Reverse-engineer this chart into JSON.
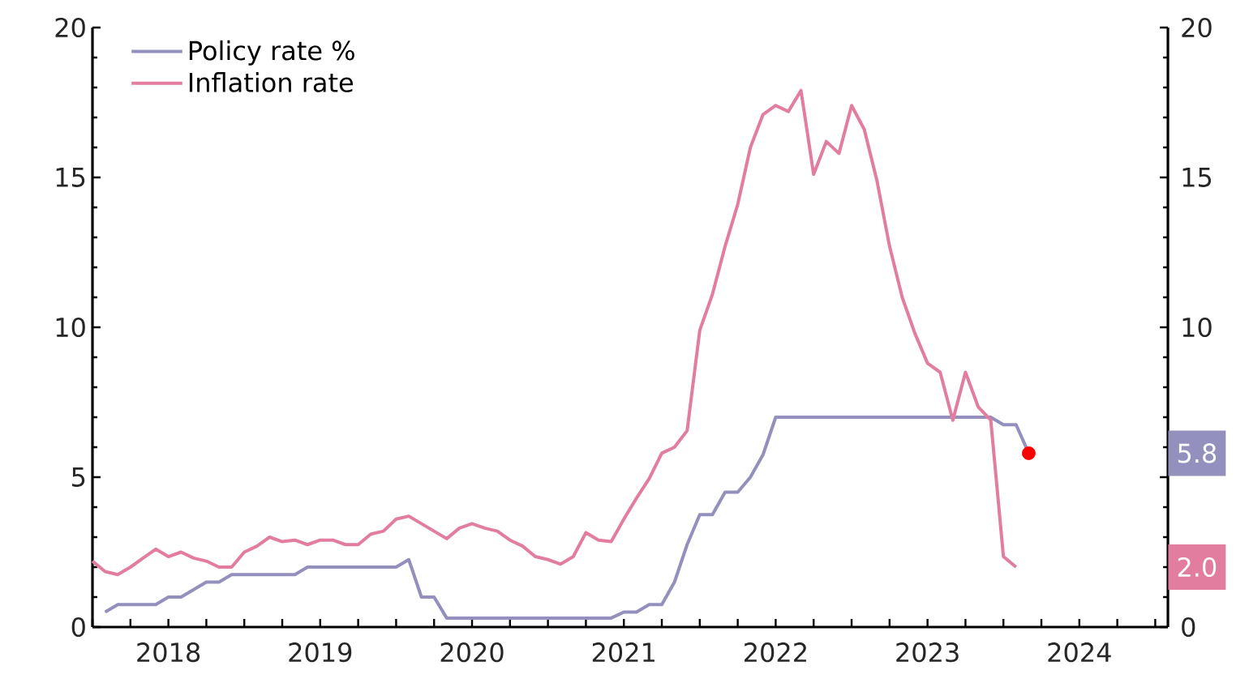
{
  "chart_data": {
    "type": "line",
    "x": [
      "2018-01",
      "2018-02",
      "2018-03",
      "2018-04",
      "2018-05",
      "2018-06",
      "2018-07",
      "2018-08",
      "2018-09",
      "2018-10",
      "2018-11",
      "2018-12",
      "2019-01",
      "2019-02",
      "2019-03",
      "2019-04",
      "2019-05",
      "2019-06",
      "2019-07",
      "2019-08",
      "2019-09",
      "2019-10",
      "2019-11",
      "2019-12",
      "2020-01",
      "2020-02",
      "2020-03",
      "2020-04",
      "2020-05",
      "2020-06",
      "2020-07",
      "2020-08",
      "2020-09",
      "2020-10",
      "2020-11",
      "2020-12",
      "2021-01",
      "2021-02",
      "2021-03",
      "2021-04",
      "2021-05",
      "2021-06",
      "2021-07",
      "2021-08",
      "2021-09",
      "2021-10",
      "2021-11",
      "2021-12",
      "2022-01",
      "2022-02",
      "2022-03",
      "2022-04",
      "2022-05",
      "2022-06",
      "2022-07",
      "2022-08",
      "2022-09",
      "2022-10",
      "2022-11",
      "2022-12",
      "2023-01",
      "2023-02",
      "2023-03",
      "2023-04",
      "2023-05",
      "2023-06",
      "2023-07",
      "2023-08",
      "2023-09",
      "2023-10",
      "2023-11",
      "2023-12",
      "2024-01",
      "2024-02",
      "2024-03"
    ],
    "series": [
      {
        "name": "Policy rate %",
        "color": "#9490be",
        "values": [
          null,
          0.5,
          0.75,
          0.75,
          0.75,
          0.75,
          1.0,
          1.0,
          1.25,
          1.5,
          1.5,
          1.75,
          1.75,
          1.75,
          1.75,
          1.75,
          1.75,
          2.0,
          2.0,
          2.0,
          2.0,
          2.0,
          2.0,
          2.0,
          2.0,
          2.25,
          1.0,
          1.0,
          0.3,
          0.3,
          0.3,
          0.3,
          0.3,
          0.3,
          0.3,
          0.3,
          0.3,
          0.3,
          0.3,
          0.3,
          0.3,
          0.3,
          0.5,
          0.5,
          0.75,
          0.75,
          1.5,
          2.75,
          3.75,
          3.75,
          4.5,
          4.5,
          5.0,
          5.75,
          7.0,
          7.0,
          7.0,
          7.0,
          7.0,
          7.0,
          7.0,
          7.0,
          7.0,
          7.0,
          7.0,
          7.0,
          7.0,
          7.0,
          7.0,
          7.0,
          7.0,
          7.0,
          6.75,
          6.75,
          5.8
        ]
      },
      {
        "name": "Inflation rate",
        "color": "#e27d9f",
        "values": [
          2.2,
          1.85,
          1.75,
          2.0,
          2.3,
          2.6,
          2.35,
          2.5,
          2.3,
          2.2,
          2.0,
          2.0,
          2.5,
          2.7,
          3.0,
          2.85,
          2.9,
          2.75,
          2.9,
          2.9,
          2.75,
          2.75,
          3.1,
          3.2,
          3.6,
          3.7,
          3.45,
          3.2,
          2.95,
          3.3,
          3.45,
          3.3,
          3.2,
          2.9,
          2.7,
          2.35,
          2.25,
          2.1,
          2.35,
          3.15,
          2.9,
          2.85,
          3.6,
          4.3,
          4.95,
          5.8,
          6.0,
          6.55,
          9.9,
          11.1,
          12.7,
          14.1,
          16.0,
          17.1,
          17.4,
          17.2,
          17.9,
          15.1,
          16.2,
          15.8,
          17.4,
          16.6,
          14.9,
          12.7,
          11.0,
          9.8,
          8.8,
          8.5,
          6.9,
          8.5,
          7.35,
          6.9,
          2.35,
          2.0,
          null
        ]
      },
      {
        "type": "scatter",
        "color": "#ff0000",
        "x": [
          "2024-03"
        ],
        "values": [
          5.8
        ]
      }
    ],
    "xlim": [
      "2018-01",
      "2025-02"
    ],
    "xticks": [
      {
        "value": "2018-01",
        "label": null
      },
      {
        "value": "2018-04",
        "label": null
      },
      {
        "value": "2018-07",
        "label": "2018"
      },
      {
        "value": "2018-10",
        "label": null
      },
      {
        "value": "2019-01",
        "label": null
      },
      {
        "value": "2019-04",
        "label": null
      },
      {
        "value": "2019-07",
        "label": "2019"
      },
      {
        "value": "2019-10",
        "label": null
      },
      {
        "value": "2020-01",
        "label": null
      },
      {
        "value": "2020-04",
        "label": null
      },
      {
        "value": "2020-07",
        "label": "2020"
      },
      {
        "value": "2020-10",
        "label": null
      },
      {
        "value": "2021-01",
        "label": null
      },
      {
        "value": "2021-04",
        "label": null
      },
      {
        "value": "2021-07",
        "label": "2021"
      },
      {
        "value": "2021-10",
        "label": null
      },
      {
        "value": "2022-01",
        "label": null
      },
      {
        "value": "2022-04",
        "label": null
      },
      {
        "value": "2022-07",
        "label": "2022"
      },
      {
        "value": "2022-10",
        "label": null
      },
      {
        "value": "2023-01",
        "label": null
      },
      {
        "value": "2023-04",
        "label": null
      },
      {
        "value": "2023-07",
        "label": "2023"
      },
      {
        "value": "2023-10",
        "label": null
      },
      {
        "value": "2024-01",
        "label": null
      },
      {
        "value": "2024-04",
        "label": null
      },
      {
        "value": "2024-07",
        "label": "2024"
      },
      {
        "value": "2024-10",
        "label": null
      },
      {
        "value": "2025-01",
        "label": null
      }
    ],
    "ylim": [
      0,
      20
    ],
    "yticks": [
      0,
      5,
      10,
      15,
      20
    ],
    "y2lim": [
      0,
      20
    ],
    "y2ticks": [
      0,
      {
        "value": 5,
        "label": null
      },
      10,
      15,
      20
    ],
    "annotations": [
      "5.8",
      "2.0"
    ],
    "legend": "top left"
  }
}
